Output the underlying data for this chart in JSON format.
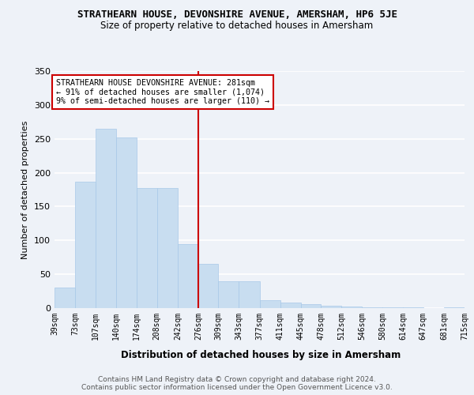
{
  "title": "STRATHEARN HOUSE, DEVONSHIRE AVENUE, AMERSHAM, HP6 5JE",
  "subtitle": "Size of property relative to detached houses in Amersham",
  "xlabel": "Distribution of detached houses by size in Amersham",
  "ylabel": "Number of detached properties",
  "bar_values": [
    30,
    187,
    265,
    252,
    177,
    177,
    95,
    65,
    40,
    40,
    12,
    8,
    6,
    4,
    2,
    1,
    1,
    1,
    0,
    1
  ],
  "bin_edges": [
    39,
    73,
    107,
    140,
    174,
    208,
    242,
    276,
    309,
    343,
    377,
    411,
    445,
    478,
    512,
    546,
    580,
    614,
    647,
    681,
    715
  ],
  "bar_color": "#c8ddf0",
  "bar_edgecolor": "#a8c8e8",
  "vline_x": 276,
  "vline_color": "#cc0000",
  "annotation_text": "STRATHEARN HOUSE DEVONSHIRE AVENUE: 281sqm\n← 91% of detached houses are smaller (1,074)\n9% of semi-detached houses are larger (110) →",
  "annotation_boxcolor": "white",
  "annotation_edgecolor": "#cc0000",
  "ylim": [
    0,
    350
  ],
  "yticks": [
    0,
    50,
    100,
    150,
    200,
    250,
    300,
    350
  ],
  "tick_labels": [
    "39sqm",
    "73sqm",
    "107sqm",
    "140sqm",
    "174sqm",
    "208sqm",
    "242sqm",
    "276sqm",
    "309sqm",
    "343sqm",
    "377sqm",
    "411sqm",
    "445sqm",
    "478sqm",
    "512sqm",
    "546sqm",
    "580sqm",
    "614sqm",
    "647sqm",
    "681sqm",
    "715sqm"
  ],
  "footer_text": "Contains HM Land Registry data © Crown copyright and database right 2024.\nContains public sector information licensed under the Open Government Licence v3.0.",
  "bg_color": "#eef2f8",
  "plot_bg_color": "#eef2f8"
}
